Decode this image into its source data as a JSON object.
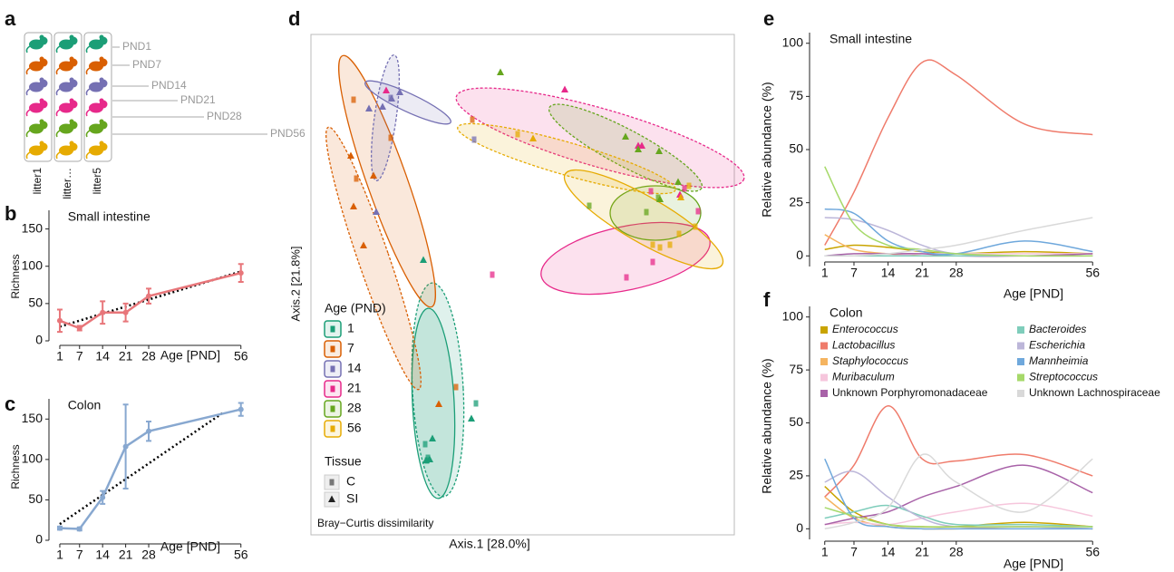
{
  "diagram": {
    "label": "a",
    "litters": [
      "litter1",
      "litter…",
      "litter5"
    ],
    "ages": [
      "PND1",
      "PND7",
      "PND14",
      "PND21",
      "PND28",
      "PND56"
    ],
    "colors": [
      "#1b9e77",
      "#d95f02",
      "#7570b3",
      "#e7298a",
      "#66a61e",
      "#e6ab02"
    ]
  },
  "chart_data": [
    {
      "label": "b",
      "type": "line",
      "title": "Small intestine",
      "x_label": "Age [PND]",
      "y_label": "Richness",
      "color": "#e8767a",
      "x": [
        1,
        7,
        14,
        21,
        28,
        56
      ],
      "values": [
        27,
        17,
        38,
        38,
        60,
        91
      ],
      "errors": [
        15,
        3,
        15,
        12,
        10,
        12
      ],
      "trend": {
        "x": [
          1,
          56
        ],
        "values": [
          19,
          93
        ]
      },
      "xlim": [
        -1,
        58
      ],
      "xticks": [
        1,
        7,
        14,
        21,
        28,
        56
      ],
      "ylim": [
        0,
        175
      ],
      "yticks": [
        0,
        50,
        100,
        150
      ]
    },
    {
      "label": "c",
      "type": "line",
      "title": "Colon",
      "x_label": "Age [PND]",
      "y_label": "Richness",
      "color": "#88a8d0",
      "x": [
        1,
        7,
        14,
        21,
        28,
        56
      ],
      "values": [
        15,
        14,
        53,
        116,
        135,
        162
      ],
      "errors": [
        2,
        2,
        8,
        52,
        12,
        8
      ],
      "trend": {
        "x": [
          1,
          51
        ],
        "values": [
          20,
          159
        ]
      },
      "xlim": [
        -1,
        58
      ],
      "xticks": [
        1,
        7,
        14,
        21,
        28,
        56
      ],
      "ylim": [
        0,
        175
      ],
      "yticks": [
        0,
        50,
        100,
        150
      ]
    },
    {
      "label": "d",
      "type": "scatter",
      "x_label": "Axis.1 [28.0%]",
      "y_label": "Axis.2 [21.8%]",
      "note": "Bray−Curtis dissimilarity",
      "legend_title": "Age (PND)",
      "tissue_title": "Tissue",
      "tissues": [
        "C",
        "SI"
      ],
      "xlim": [
        0,
        467
      ],
      "ylim": [
        0,
        552
      ],
      "groups": [
        {
          "name": "1",
          "color": "#1b9e77",
          "series": [
            {
              "tissue": 0,
              "x": [
                182,
                126,
                128,
                129
              ],
              "y": [
                145,
                100,
                82,
                85
              ],
              "ellipse": {
                "cx": 140,
                "cy": 160,
                "rx": 28,
                "ry": 118,
                "angle": 3
              }
            },
            {
              "tissue": 1,
              "x": [
                124,
                177,
                134,
                127,
                131
              ],
              "y": [
                303,
                128,
                106,
                82,
                83
              ],
              "ellipse": {
                "cx": 135,
                "cy": 145,
                "rx": 23,
                "ry": 105,
                "angle": 3
              }
            }
          ]
        },
        {
          "name": "7",
          "color": "#d95f02",
          "series": [
            {
              "tissue": 0,
              "x": [
                47,
                50,
                88,
                160,
                178
              ],
              "y": [
                480,
                393,
                438,
                163,
                458
              ],
              "ellipse": {
                "cx": 69,
                "cy": 305,
                "rx": 17,
                "ry": 153,
                "angle": 19
              }
            },
            {
              "tissue": 1,
              "x": [
                44,
                47,
                58,
                69,
                141
              ],
              "y": [
                418,
                362,
                319,
                396,
                144
              ],
              "ellipse": {
                "cx": 84,
                "cy": 390,
                "rx": 22,
                "ry": 147,
                "angle": 19.5
              }
            }
          ]
        },
        {
          "name": "14",
          "color": "#7570b3",
          "series": [
            {
              "tissue": 0,
              "x": [
                88,
                180
              ],
              "y": [
                482,
                436
              ],
              "ellipse": {
                "cx": 82,
                "cy": 460,
                "rx": 12,
                "ry": 70,
                "angle": -8
              }
            },
            {
              "tissue": 1,
              "x": [
                64,
                72,
                79,
                98,
                89
              ],
              "y": [
                470,
                356,
                472,
                488,
                481
              ],
              "ellipse": {
                "cx": 107,
                "cy": 477,
                "rx": 52,
                "ry": 10,
                "angle": -25
              }
            }
          ]
        },
        {
          "name": "21",
          "color": "#e7298a",
          "series": [
            {
              "tissue": 0,
              "x": [
                200,
                348,
                377,
                375,
                412,
                427
              ],
              "y": [
                287,
                284,
                301,
                379,
                382,
                357
              ],
              "ellipse": {
                "cx": 319,
                "cy": 438,
                "rx": 165,
                "ry": 32,
                "angle": -16
              }
            },
            {
              "tissue": 1,
              "x": [
                83,
                280,
                361,
                365,
                407
              ],
              "y": [
                490,
                491,
                429,
                429,
                375
              ],
              "ellipse": {
                "cx": 347,
                "cy": 305,
                "rx": 95,
                "ry": 35,
                "angle": 12
              }
            }
          ]
        },
        {
          "name": "28",
          "color": "#66a61e",
          "series": [
            {
              "tissue": 0,
              "x": [
                307,
                370,
                383
              ],
              "y": [
                363,
                356,
                372
              ],
              "ellipse": {
                "cx": 347,
                "cy": 427,
                "rx": 95,
                "ry": 20,
                "angle": -28
              }
            },
            {
              "tissue": 1,
              "x": [
                209,
                347,
                361,
                384,
                385,
                405
              ],
              "y": [
                510,
                439,
                425,
                423,
                370,
                389
              ],
              "ellipse": {
                "cx": 380,
                "cy": 355,
                "rx": 50,
                "ry": 30,
                "angle": 0
              }
            }
          ]
        },
        {
          "name": "56",
          "color": "#e6ab02",
          "series": [
            {
              "tissue": 0,
              "x": [
                228,
                377,
                385,
                396,
                406,
                417,
                424
              ],
              "y": [
                442,
                320,
                317,
                320,
                332,
                385,
                340
              ],
              "ellipse": {
                "cx": 282,
                "cy": 415,
                "rx": 125,
                "ry": 18,
                "angle": -16
              }
            },
            {
              "tissue": 1,
              "x": [
                245,
                408
              ],
              "y": [
                437,
                372
              ],
              "ellipse": {
                "cx": 367,
                "cy": 348,
                "rx": 100,
                "ry": 25,
                "angle": -30
              }
            }
          ]
        }
      ]
    },
    {
      "label": "e",
      "type": "smooth",
      "title": "Small intestine",
      "x_label": "Age [PND]",
      "y_label": "Relative abundance (%)",
      "x": [
        1,
        7,
        14,
        21,
        28,
        42,
        56
      ],
      "xlim": [
        -1,
        58
      ],
      "xticks": [
        1,
        7,
        14,
        21,
        28,
        56
      ],
      "ylim": [
        -5,
        105
      ],
      "yticks": [
        0,
        25,
        50,
        75,
        100
      ],
      "series": [
        {
          "color": "#c9a400",
          "values": [
            3,
            5,
            4,
            2,
            1,
            2,
            1
          ]
        },
        {
          "color": "#ef7b6b",
          "values": [
            5,
            30,
            65,
            91,
            85,
            62,
            57
          ]
        },
        {
          "color": "#f5b460",
          "values": [
            10,
            3,
            1,
            0,
            0,
            0,
            0
          ]
        },
        {
          "color": "#f6c6dc",
          "values": [
            0,
            0,
            0,
            1,
            1,
            1,
            1
          ]
        },
        {
          "color": "#a862a8",
          "values": [
            0,
            1,
            1,
            1,
            0,
            0,
            1
          ]
        },
        {
          "color": "#7fcdbb",
          "values": [
            0,
            0,
            0,
            0,
            0,
            0,
            0
          ]
        },
        {
          "color": "#bcb6d9",
          "values": [
            18,
            17,
            12,
            5,
            1,
            0,
            0
          ]
        },
        {
          "color": "#6fa8dc",
          "values": [
            22,
            20,
            7,
            2,
            1,
            7,
            2
          ]
        },
        {
          "color": "#a6d96a",
          "values": [
            42,
            15,
            5,
            3,
            1,
            0,
            0
          ]
        },
        {
          "color": "#d9d9d9",
          "values": [
            0,
            0,
            1,
            3,
            5,
            12,
            18
          ]
        }
      ]
    },
    {
      "label": "f",
      "type": "smooth",
      "title": "Colon",
      "x_label": "Age [PND]",
      "y_label": "Relative abundance (%)",
      "x": [
        1,
        7,
        14,
        21,
        28,
        42,
        56
      ],
      "xlim": [
        -1,
        58
      ],
      "xticks": [
        1,
        7,
        14,
        21,
        28,
        56
      ],
      "ylim": [
        -5,
        105
      ],
      "yticks": [
        0,
        25,
        50,
        75,
        100
      ],
      "series": [
        {
          "name": "Enterococcus",
          "italic": true,
          "color": "#c9a400",
          "values": [
            20,
            8,
            2,
            1,
            1,
            3,
            1
          ]
        },
        {
          "name": "Lactobacillus",
          "italic": true,
          "color": "#ef7b6b",
          "values": [
            15,
            30,
            58,
            33,
            32,
            35,
            25
          ]
        },
        {
          "name": "Staphylococcus",
          "italic": true,
          "color": "#f5b460",
          "values": [
            15,
            5,
            1,
            0,
            0,
            1,
            0
          ]
        },
        {
          "name": "Muribaculum",
          "italic": true,
          "color": "#f6c6dc",
          "values": [
            2,
            3,
            2,
            5,
            8,
            12,
            6
          ]
        },
        {
          "name": "Unknown Porphyromonadaceae",
          "italic": false,
          "color": "#a862a8",
          "values": [
            2,
            5,
            8,
            15,
            20,
            30,
            17
          ]
        },
        {
          "name": "Bacteroides",
          "italic": true,
          "color": "#7fcdbb",
          "values": [
            5,
            8,
            11,
            6,
            2,
            2,
            1
          ]
        },
        {
          "name": "Escherichia",
          "italic": true,
          "color": "#bcb6d9",
          "values": [
            22,
            27,
            15,
            5,
            1,
            1,
            0
          ]
        },
        {
          "name": "Mannheimia",
          "italic": true,
          "color": "#6fa8dc",
          "values": [
            33,
            5,
            1,
            0,
            0,
            0,
            0
          ]
        },
        {
          "name": "Streptococcus",
          "italic": true,
          "color": "#a6d96a",
          "values": [
            10,
            6,
            2,
            1,
            1,
            1,
            1
          ]
        },
        {
          "name": "Unknown Lachnospiraceae",
          "italic": false,
          "color": "#d9d9d9",
          "values": [
            0,
            3,
            10,
            35,
            22,
            8,
            33
          ]
        }
      ]
    }
  ]
}
